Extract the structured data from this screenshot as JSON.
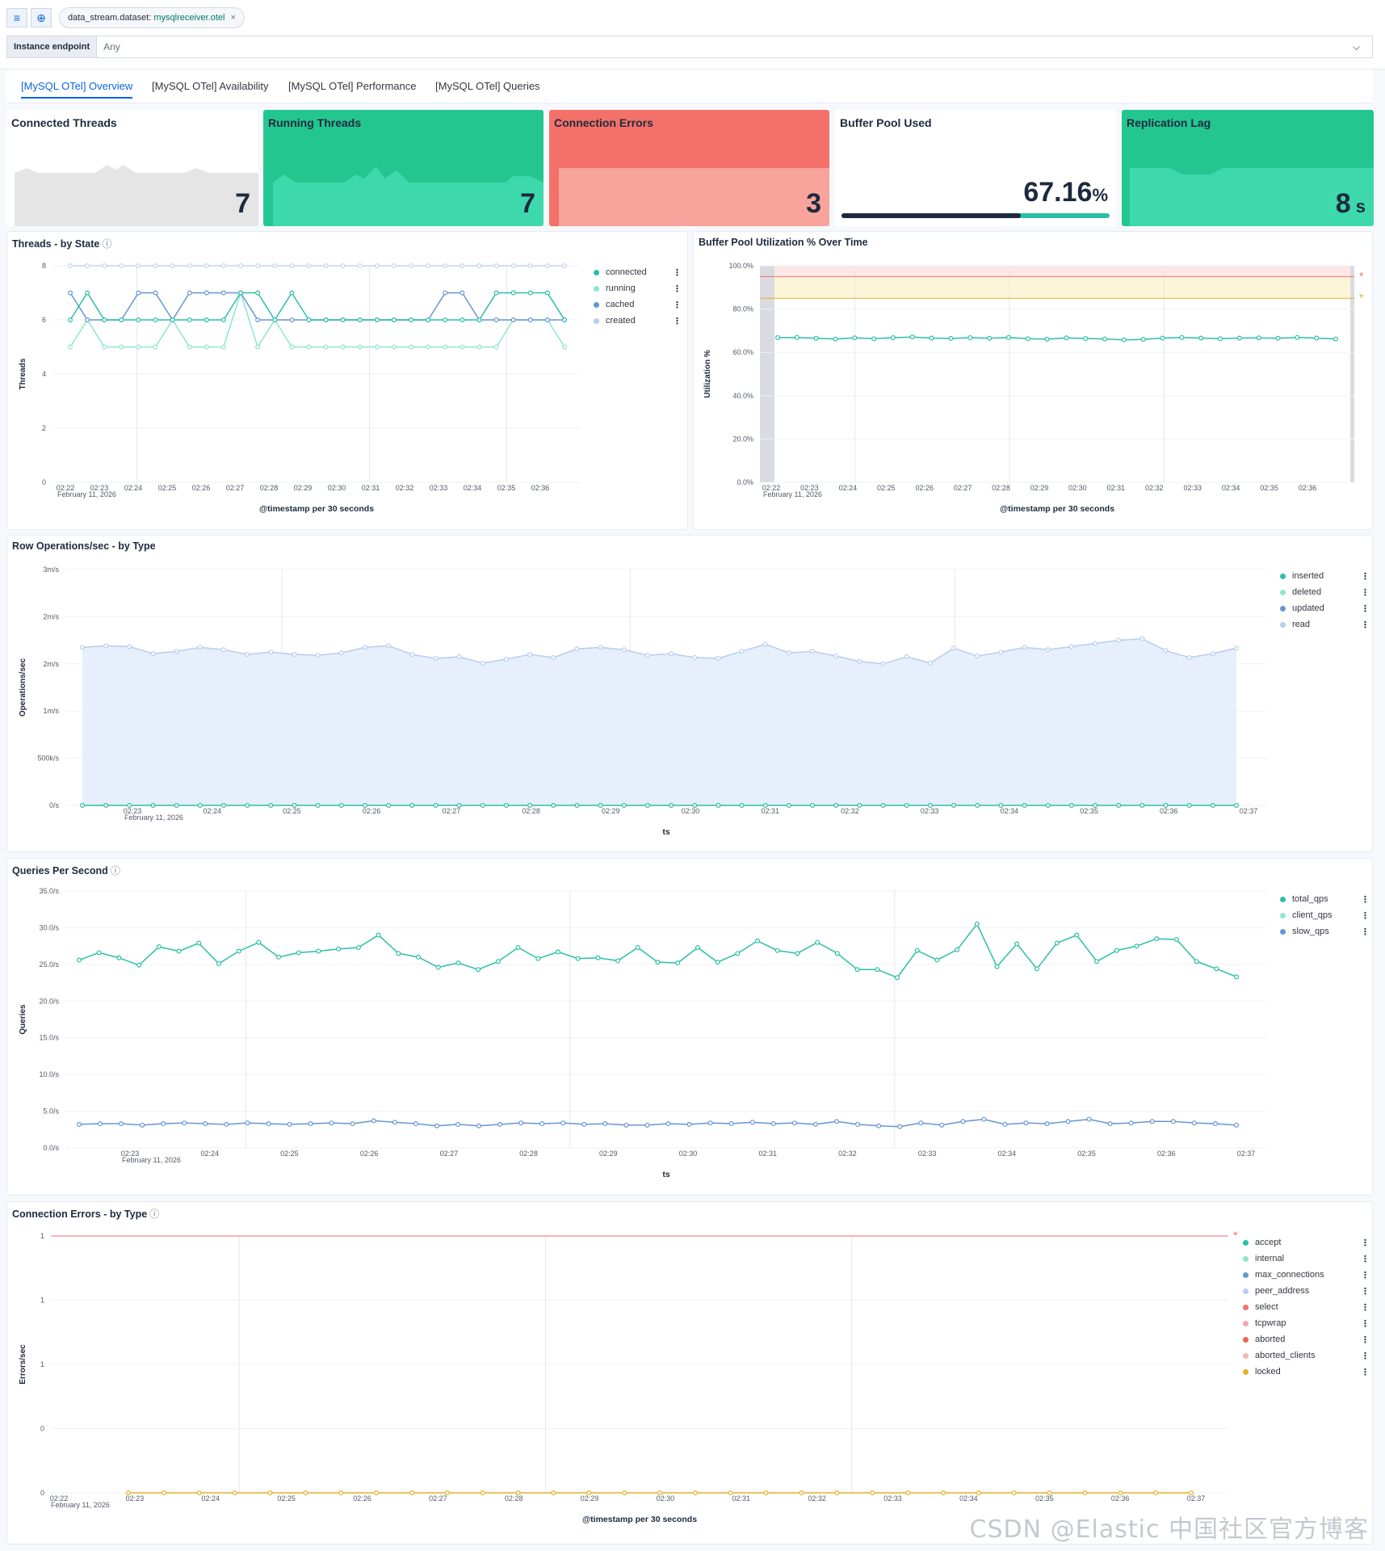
{
  "filter_bar": {
    "filter_icon": "filter-icon",
    "add_icon": "plus-circle-icon",
    "pill_field": "data_stream.dataset:",
    "pill_value": "mysqlreceiver.otel",
    "pill_close": "×"
  },
  "control": {
    "label": "Instance endpoint",
    "value": "Any",
    "chevron": "⌵"
  },
  "tabs": [
    {
      "label": "[MySQL OTel] Overview",
      "active": true
    },
    {
      "label": "[MySQL OTel] Availability",
      "active": false
    },
    {
      "label": "[MySQL OTel] Performance",
      "active": false
    },
    {
      "label": "[MySQL OTel] Queries",
      "active": false
    }
  ],
  "metrics": [
    {
      "title": "Connected Threads",
      "value": "7",
      "unit": ""
    },
    {
      "title": "Running Threads",
      "value": "7",
      "unit": ""
    },
    {
      "title": "Connection Errors",
      "value": "3",
      "unit": ""
    },
    {
      "title": "Buffer Pool Used",
      "value": "67.16",
      "unit": "%",
      "progress": 0.67
    },
    {
      "title": "Replication Lag",
      "value": "8",
      "unit": " s"
    }
  ],
  "colors": {
    "teal": "#2bbfa6",
    "teal_light": "#3dd8ab",
    "mint": "#8ee6cf",
    "blue": "#6596d3",
    "blue_light": "#b8cdef",
    "red": "#f37169",
    "red_light": "#f8a39b",
    "gray": "#e5e5e5",
    "green_bg": "#24c690",
    "yellow": "#e2b12b",
    "pink": "#f2a6b5"
  },
  "watermark": "CSDN @Elastic 中国社区官方博客",
  "chart_data": [
    {
      "id": "threads",
      "type": "line",
      "title": "Threads - by State",
      "xlabel": "@timestamp per 30 seconds",
      "ylabel": "Threads",
      "ylim": [
        0,
        8
      ],
      "yticks": [
        "0",
        "2",
        "4",
        "6",
        "8"
      ],
      "xticks": [
        "02:22",
        "02:23",
        "02:24",
        "02:25",
        "02:26",
        "02:27",
        "02:28",
        "02:29",
        "02:30",
        "02:31",
        "02:32",
        "02:33",
        "02:34",
        "02:35",
        "02:36"
      ],
      "date_label": "February 11, 2026",
      "legend": [
        "connected",
        "running",
        "cached",
        "created"
      ],
      "series": [
        {
          "name": "created",
          "color": "#c3d6f0",
          "values": [
            8,
            8,
            8,
            8,
            8,
            8,
            8,
            8,
            8,
            8,
            8,
            8,
            8,
            8,
            8,
            8,
            8,
            8,
            8,
            8,
            8,
            8,
            8,
            8,
            8,
            8,
            8,
            8,
            8,
            8
          ]
        },
        {
          "name": "running",
          "color": "#8ee6cf",
          "values": [
            5,
            6,
            5,
            5,
            5,
            5,
            6,
            5,
            5,
            5,
            7,
            5,
            6,
            5,
            5,
            5,
            5,
            5,
            5,
            5,
            5,
            5,
            5,
            5,
            5,
            5,
            6,
            6,
            6,
            5
          ]
        },
        {
          "name": "cached",
          "color": "#6596d3",
          "values": [
            7,
            6,
            6,
            6,
            7,
            7,
            6,
            7,
            7,
            7,
            7,
            6,
            6,
            6,
            6,
            6,
            6,
            6,
            6,
            6,
            6,
            6,
            7,
            7,
            6,
            6,
            6,
            6,
            6,
            6
          ]
        },
        {
          "name": "connected",
          "color": "#2bbfa6",
          "values": [
            6,
            7,
            6,
            6,
            6,
            6,
            6,
            6,
            6,
            6,
            7,
            7,
            6,
            7,
            6,
            6,
            6,
            6,
            6,
            6,
            6,
            6,
            6,
            6,
            6,
            7,
            7,
            7,
            7,
            6
          ]
        }
      ]
    },
    {
      "id": "bufferpool",
      "type": "line",
      "title": "Buffer Pool Utilization % Over Time",
      "xlabel": "@timestamp per 30 seconds",
      "ylabel": "Utilization %",
      "ylim": [
        0,
        100
      ],
      "yticks": [
        "0.0%",
        "20.0%",
        "40.0%",
        "60.0%",
        "80.0%",
        "100.0%"
      ],
      "xticks": [
        "02:22",
        "02:23",
        "02:24",
        "02:25",
        "02:26",
        "02:27",
        "02:28",
        "02:29",
        "02:30",
        "02:31",
        "02:32",
        "02:33",
        "02:34",
        "02:35",
        "02:36"
      ],
      "date_label": "February 11, 2026",
      "thresholds": [
        {
          "value": 95,
          "color": "#f37169"
        },
        {
          "value": 85,
          "color": "#e2b12b"
        }
      ],
      "series": [
        {
          "name": "utilization",
          "color": "#2bbfa6",
          "values": [
            66.8,
            66.9,
            66.5,
            66.2,
            66.7,
            66.3,
            66.8,
            67.1,
            66.6,
            66.4,
            66.8,
            66.5,
            66.9,
            66.3,
            66.1,
            66.7,
            66.4,
            66.2,
            65.8,
            66.0,
            66.6,
            66.9,
            66.6,
            66.3,
            66.6,
            66.7,
            66.5,
            66.9,
            66.6,
            66.2
          ]
        }
      ]
    },
    {
      "id": "rowops",
      "type": "area",
      "title": "Row Operations/sec - by Type",
      "xlabel": "ts",
      "ylabel": "Operations/sec",
      "ylim": [
        0,
        3
      ],
      "yticks": [
        "0/s",
        "500k/s",
        "1m/s",
        "2m/s",
        "2m/s",
        "3m/s"
      ],
      "xticks": [
        "02:23",
        "02:24",
        "02:25",
        "02:26",
        "02:27",
        "02:28",
        "02:29",
        "02:30",
        "02:31",
        "02:32",
        "02:33",
        "02:34",
        "02:35",
        "02:36",
        "02:37"
      ],
      "date_label": "February 11, 2026",
      "legend": [
        "inserted",
        "deleted",
        "updated",
        "read"
      ],
      "series": [
        {
          "name": "read",
          "color": "#b8cdef",
          "values": [
            2.01,
            2.03,
            2.02,
            1.93,
            1.96,
            2.01,
            1.98,
            1.92,
            1.95,
            1.92,
            1.91,
            1.94,
            2.01,
            2.03,
            1.92,
            1.87,
            1.89,
            1.81,
            1.86,
            1.92,
            1.88,
            1.99,
            2.01,
            1.98,
            1.91,
            1.93,
            1.88,
            1.87,
            1.96,
            2.05,
            1.94,
            1.96,
            1.9,
            1.83,
            1.8,
            1.89,
            1.81,
            2,
            1.9,
            1.95,
            2.01,
            1.98,
            2.02,
            2.06,
            2.1,
            2.12,
            1.97,
            1.88,
            1.93,
            2
          ]
        },
        {
          "name": "inserted",
          "color": "#2bbfa6",
          "values": [
            0,
            0,
            0,
            0,
            0,
            0,
            0,
            0,
            0,
            0,
            0,
            0,
            0,
            0,
            0,
            0,
            0,
            0,
            0,
            0,
            0,
            0,
            0,
            0,
            0,
            0,
            0,
            0,
            0,
            0,
            0,
            0,
            0,
            0,
            0,
            0,
            0,
            0,
            0,
            0,
            0,
            0,
            0,
            0,
            0,
            0,
            0,
            0,
            0,
            0
          ]
        }
      ]
    },
    {
      "id": "qps",
      "type": "line",
      "title": "Queries Per Second",
      "xlabel": "ts",
      "ylabel": "Queries",
      "ylim": [
        0,
        35
      ],
      "yticks": [
        "0.0/s",
        "5.0/s",
        "10.0/s",
        "15.0/s",
        "20.0/s",
        "25.0/s",
        "30.0/s",
        "35.0/s"
      ],
      "xticks": [
        "02:23",
        "02:24",
        "02:25",
        "02:26",
        "02:27",
        "02:28",
        "02:29",
        "02:30",
        "02:31",
        "02:32",
        "02:33",
        "02:34",
        "02:35",
        "02:36",
        "02:37"
      ],
      "date_label": "February 11, 2026",
      "legend": [
        "total_qps",
        "client_qps",
        "slow_qps"
      ],
      "series": [
        {
          "name": "slow_qps",
          "color": "#6596d3",
          "values": [
            3.2,
            3.3,
            3.3,
            3.1,
            3.3,
            3.4,
            3.3,
            3.2,
            3.4,
            3.3,
            3.2,
            3.3,
            3.4,
            3.3,
            3.7,
            3.5,
            3.3,
            3.0,
            3.2,
            3.0,
            3.2,
            3.4,
            3.3,
            3.4,
            3.2,
            3.3,
            3.1,
            3.1,
            3.3,
            3.2,
            3.4,
            3.3,
            3.5,
            3.3,
            3.4,
            3.2,
            3.6,
            3.2,
            3.0,
            2.9,
            3.4,
            3.1,
            3.6,
            3.9,
            3.2,
            3.4,
            3.3,
            3.6,
            3.9,
            3.3,
            3.4,
            3.6,
            3.6,
            3.4,
            3.3,
            3.1
          ]
        },
        {
          "name": "total_qps",
          "color": "#2bbfa6",
          "values": [
            25.6,
            26.6,
            25.9,
            24.9,
            27.4,
            26.8,
            27.9,
            25.1,
            26.8,
            28.0,
            26.0,
            26.6,
            26.8,
            27.1,
            27.3,
            29.0,
            26.5,
            26.0,
            24.6,
            25.2,
            24.3,
            25.4,
            27.3,
            25.8,
            26.7,
            25.8,
            25.9,
            25.5,
            27.3,
            25.3,
            25.2,
            27.3,
            25.3,
            26.5,
            28.2,
            26.9,
            26.5,
            28.0,
            26.5,
            24.3,
            24.3,
            23.2,
            26.9,
            25.6,
            27.0,
            30.5,
            24.7,
            27.8,
            24.4,
            27.9,
            29.0,
            25.4,
            26.9,
            27.5,
            28.5,
            28.4,
            25.4,
            24.4,
            23.3
          ]
        }
      ]
    },
    {
      "id": "connerr",
      "type": "line",
      "title": "Connection Errors - by Type",
      "xlabel": "@timestamp per 30 seconds",
      "ylabel": "Errors/sec",
      "ylim": [
        0,
        1
      ],
      "yticks": [
        "0",
        "0",
        "1",
        "1",
        "1"
      ],
      "xticks": [
        "02:22",
        "02:23",
        "02:24",
        "02:25",
        "02:26",
        "02:27",
        "02:28",
        "02:29",
        "02:30",
        "02:31",
        "02:32",
        "02:33",
        "02:34",
        "02:35",
        "02:36",
        "02:37"
      ],
      "date_label": "February 11, 2026",
      "thresholds": [
        {
          "value": 1,
          "color": "#f37169"
        }
      ],
      "legend": [
        "accept",
        "internal",
        "max_connections",
        "peer_address",
        "select",
        "tcpwrap",
        "aborted",
        "aborted_clients",
        "locked"
      ],
      "series": [
        {
          "name": "locked",
          "color": "#e2b12b",
          "values": [
            0,
            0,
            0,
            0,
            0,
            0,
            0,
            0,
            0,
            0,
            0,
            0,
            0,
            0,
            0,
            0,
            0,
            0,
            0,
            0,
            0,
            0,
            0,
            0,
            0,
            0,
            0,
            0,
            0,
            0,
            0
          ]
        }
      ]
    }
  ]
}
